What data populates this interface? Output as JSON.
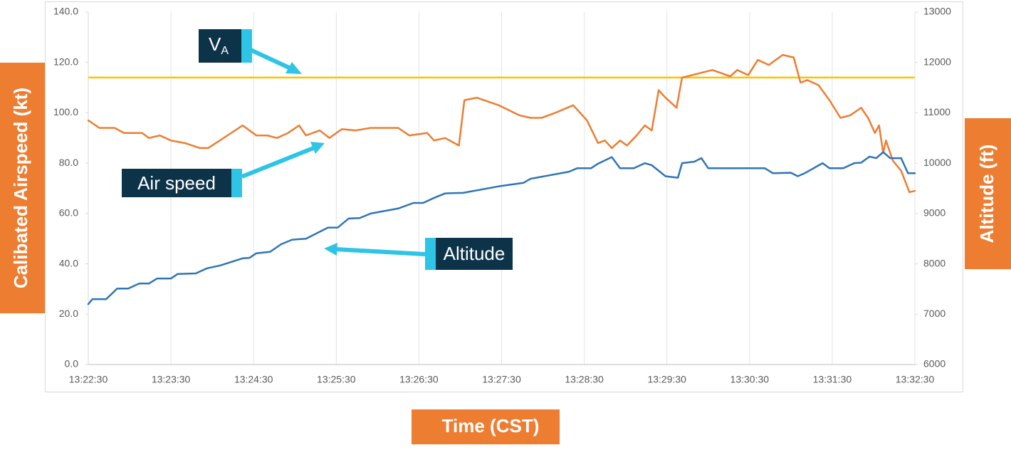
{
  "chart_data": {
    "type": "line",
    "y_label": "Calibated Airspeed (kt)",
    "y2_label": "Altitude (ft)",
    "x_label": "Time (CST)",
    "xlim": [
      "13:22:30",
      "13:32:30"
    ],
    "xticks": [
      "13:22:30",
      "13:23:30",
      "13:24:30",
      "13:25:30",
      "13:26:30",
      "13:27:30",
      "13:28:30",
      "13:29:30",
      "13:30:30",
      "13:31:30",
      "13:32:30"
    ],
    "ylim": [
      0,
      140
    ],
    "yticks": [
      {
        "value": 0,
        "label": "0.0"
      },
      {
        "value": 20,
        "label": "20.0"
      },
      {
        "value": 40,
        "label": "40.0"
      },
      {
        "value": 60,
        "label": "60.0"
      },
      {
        "value": 80,
        "label": "80.0"
      },
      {
        "value": 100,
        "label": "100.0"
      },
      {
        "value": 120,
        "label": "120.0"
      },
      {
        "value": 140,
        "label": "140.0"
      }
    ],
    "y2lim": [
      6000,
      13000
    ],
    "y2ticks": [
      6000,
      7000,
      8000,
      9000,
      10000,
      11000,
      12000,
      13000
    ],
    "grid": "x",
    "reference_line": {
      "value": 114,
      "color": "#ffc000",
      "label": "V",
      "label_subscript": "A"
    },
    "series": [
      {
        "name": "Air speed",
        "color": "#ed7d31",
        "x": [
          "13:22:30",
          "13:22:38",
          "13:22:49",
          "13:22:56",
          "13:23:09",
          "13:23:14",
          "13:23:22",
          "13:23:30",
          "13:23:40",
          "13:23:51",
          "13:23:57",
          "13:24:11",
          "13:24:22",
          "13:24:32",
          "13:24:40",
          "13:24:47",
          "13:24:55",
          "13:25:03",
          "13:25:08",
          "13:25:18",
          "13:25:25",
          "13:25:34",
          "13:25:44",
          "13:25:55",
          "13:26:15",
          "13:26:23",
          "13:26:36",
          "13:26:41",
          "13:26:49",
          "13:26:59",
          "13:27:03",
          "13:27:12",
          "13:27:28",
          "13:27:43",
          "13:27:51",
          "13:27:59",
          "13:28:09",
          "13:28:22",
          "13:28:32",
          "13:28:40",
          "13:28:45",
          "13:28:50",
          "13:28:56",
          "13:29:01",
          "13:29:08",
          "13:29:14",
          "13:29:19",
          "13:29:24",
          "13:29:29",
          "13:29:37",
          "13:29:41",
          "13:30:03",
          "13:30:16",
          "13:30:21",
          "13:30:29",
          "13:30:36",
          "13:30:44",
          "13:30:54",
          "13:31:02",
          "13:31:07",
          "13:31:12",
          "13:31:20",
          "13:31:28",
          "13:31:36",
          "13:31:43",
          "13:31:51",
          "13:31:56",
          "13:32:01",
          "13:32:04",
          "13:32:07",
          "13:32:09",
          "13:32:14",
          "13:32:20",
          "13:32:26",
          "13:32:30"
        ],
        "values": [
          97,
          94,
          94,
          92,
          92,
          90,
          91,
          89,
          88,
          86,
          86,
          91,
          95,
          91,
          91,
          90,
          92,
          95,
          91,
          93,
          90,
          93.5,
          93,
          94,
          94,
          91,
          92,
          89,
          90,
          87,
          105,
          106,
          103,
          99,
          98,
          98,
          100,
          103,
          97,
          88,
          89,
          86,
          89,
          87,
          91,
          95,
          93,
          109,
          106,
          102,
          114,
          117,
          114.5,
          117,
          115,
          121,
          119,
          123,
          122,
          112,
          113,
          111,
          105,
          98,
          99,
          102,
          98,
          92,
          95,
          84,
          89,
          81,
          77,
          68.5,
          69
        ]
      },
      {
        "name": "Altitude",
        "color": "#2e75b6",
        "axis": "y2",
        "x": [
          "13:22:30",
          "13:22:33",
          "13:22:43",
          "13:22:51",
          "13:22:59",
          "13:23:07",
          "13:23:14",
          "13:23:20",
          "13:23:30",
          "13:23:35",
          "13:23:48",
          "13:23:56",
          "13:24:06",
          "13:24:22",
          "13:24:27",
          "13:24:32",
          "13:24:42",
          "13:24:50",
          "13:24:58",
          "13:25:08",
          "13:25:24",
          "13:25:31",
          "13:25:39",
          "13:25:47",
          "13:25:55",
          "13:26:15",
          "13:26:26",
          "13:26:33",
          "13:26:41",
          "13:26:49",
          "13:27:02",
          "13:27:28",
          "13:27:46",
          "13:27:51",
          "13:28:19",
          "13:28:25",
          "13:28:35",
          "13:28:40",
          "13:28:50",
          "13:28:56",
          "13:29:06",
          "13:29:14",
          "13:29:19",
          "13:29:29",
          "13:29:38",
          "13:29:41",
          "13:29:50",
          "13:29:55",
          "13:30:00",
          "13:30:41",
          "13:30:47",
          "13:31:00",
          "13:31:05",
          "13:31:10",
          "13:31:23",
          "13:31:28",
          "13:31:38",
          "13:31:46",
          "13:31:51",
          "13:31:57",
          "13:32:02",
          "13:32:07",
          "13:32:12",
          "13:32:20",
          "13:32:25",
          "13:32:30"
        ],
        "values": [
          7200,
          7300,
          7300,
          7510,
          7510,
          7610,
          7610,
          7710,
          7710,
          7800,
          7810,
          7910,
          7970,
          8110,
          8120,
          8210,
          8240,
          8390,
          8480,
          8500,
          8720,
          8720,
          8900,
          8910,
          9000,
          9100,
          9210,
          9210,
          9310,
          9400,
          9410,
          9540,
          9610,
          9690,
          9830,
          9900,
          9900,
          9990,
          10120,
          9900,
          9900,
          10000,
          9960,
          9740,
          9710,
          10000,
          10030,
          10100,
          9900,
          9900,
          9800,
          9810,
          9740,
          9800,
          10000,
          9900,
          9900,
          10000,
          10010,
          10130,
          10100,
          10220,
          10100,
          10100,
          9800,
          9800
        ]
      }
    ]
  }
}
